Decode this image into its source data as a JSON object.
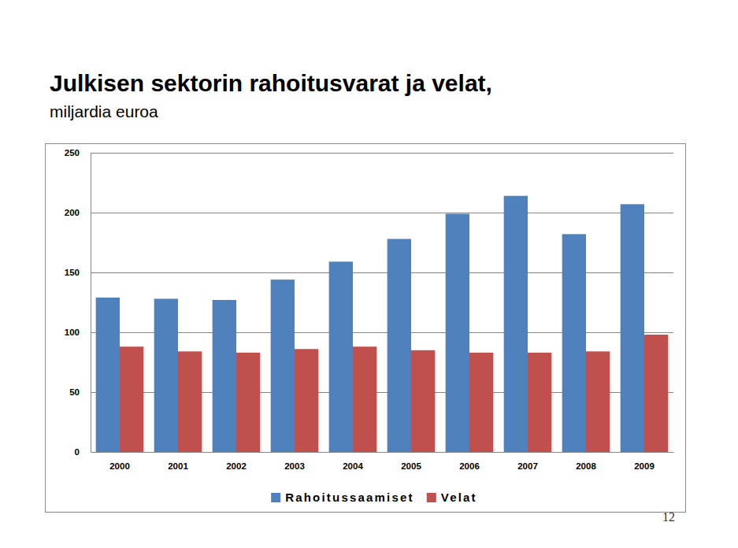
{
  "chart_data": {
    "type": "bar",
    "title": "Julkisen sektorin rahoitusvarat ja velat,",
    "subtitle": "miljardia euroa",
    "categories": [
      "2000",
      "2001",
      "2002",
      "2003",
      "2004",
      "2005",
      "2006",
      "2007",
      "2008",
      "2009"
    ],
    "series": [
      {
        "name": "Rahoitussaamiset",
        "color": "#4f81bd",
        "values": [
          129,
          128,
          127,
          144,
          159,
          178,
          199,
          214,
          182,
          207
        ]
      },
      {
        "name": "Velat",
        "color": "#c0504d",
        "values": [
          88,
          84,
          83,
          86,
          88,
          85,
          83,
          83,
          84,
          98
        ]
      }
    ],
    "ylim": [
      0,
      250
    ],
    "yticks": [
      0,
      50,
      100,
      150,
      200,
      250
    ],
    "grid": true,
    "legend": "bottom",
    "annotations": [
      "12"
    ]
  }
}
